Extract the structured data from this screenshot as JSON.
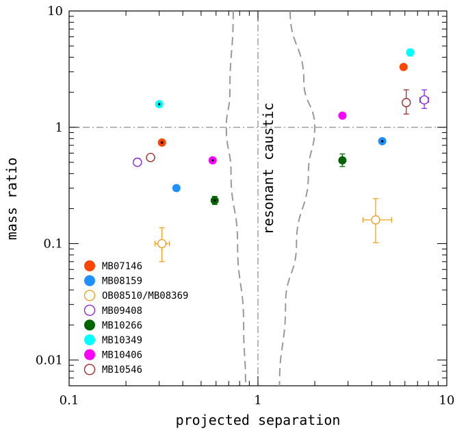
{
  "chart_data": {
    "type": "scatter",
    "xlabel": "projected separation",
    "ylabel": "mass ratio",
    "xscale": "log",
    "yscale": "log",
    "xlim": [
      0.1,
      10
    ],
    "ylim": [
      0.006,
      10
    ],
    "x_ticks": [
      {
        "value": 0.1,
        "label": "0.1"
      },
      {
        "value": 1,
        "label": "1"
      },
      {
        "value": 10,
        "label": "10"
      }
    ],
    "y_ticks": [
      {
        "value": 0.01,
        "label": "0.01"
      },
      {
        "value": 0.1,
        "label": "0.1"
      },
      {
        "value": 1,
        "label": "1"
      },
      {
        "value": 10,
        "label": "10"
      }
    ],
    "annotation": "resonant caustic",
    "reference_lines": {
      "vertical_x": 1,
      "horizontal_y": 1,
      "style": "dash-dot"
    },
    "caustic_boundary": {
      "style": "dashed",
      "left": [
        [
          0.74,
          10
        ],
        [
          0.71,
          2.0
        ],
        [
          0.68,
          1.0
        ],
        [
          0.72,
          0.4
        ],
        [
          0.78,
          0.1
        ],
        [
          0.84,
          0.02
        ],
        [
          0.86,
          0.006
        ]
      ],
      "right": [
        [
          1.48,
          10
        ],
        [
          1.75,
          2.5
        ],
        [
          2.0,
          1.0
        ],
        [
          1.85,
          0.4
        ],
        [
          1.6,
          0.1
        ],
        [
          1.4,
          0.03
        ],
        [
          1.3,
          0.006
        ]
      ]
    },
    "legend": {
      "placement": "lower-left"
    },
    "series": [
      {
        "name": "MB07146",
        "color": "#ff4500",
        "filled": true,
        "points": [
          {
            "x": 0.31,
            "y": 0.74,
            "xerr": [
              0.01,
              0.01
            ],
            "yerr": [
              0.04,
              0.04
            ],
            "dot": true
          },
          {
            "x": 5.9,
            "y": 3.3,
            "xerr": [
              0.15,
              0.15
            ],
            "yerr": [
              0.15,
              0.15
            ],
            "dot": false
          }
        ]
      },
      {
        "name": "MB08159",
        "color": "#1e90ff",
        "filled": true,
        "points": [
          {
            "x": 0.37,
            "y": 0.3,
            "xerr": [
              0.01,
              0.01
            ],
            "yerr": [
              0.01,
              0.01
            ],
            "dot": false
          },
          {
            "x": 4.55,
            "y": 0.76,
            "xerr": [
              0.15,
              0.15
            ],
            "yerr": [
              0.03,
              0.03
            ],
            "dot": true
          }
        ]
      },
      {
        "name": "OB08510/MB08369",
        "color": "#f0a020",
        "filled": false,
        "points": [
          {
            "x": 0.31,
            "y": 0.1,
            "xerr": [
              0.025,
              0.03
            ],
            "yerr": [
              0.03,
              0.037
            ],
            "dot": false
          },
          {
            "x": 4.2,
            "y": 0.16,
            "xerr": [
              0.6,
              0.9
            ],
            "yerr": [
              0.058,
              0.084
            ],
            "dot": false
          }
        ]
      },
      {
        "name": "MB09408",
        "color": "#8a2be2",
        "filled": false,
        "points": [
          {
            "x": 0.23,
            "y": 0.5,
            "xerr": [
              0.01,
              0.01
            ],
            "yerr": [
              0.03,
              0.04
            ],
            "dot": false
          },
          {
            "x": 7.6,
            "y": 1.72,
            "xerr": [
              0.4,
              0.4
            ],
            "yerr": [
              0.27,
              0.38
            ],
            "dot": false
          }
        ]
      },
      {
        "name": "MB10266",
        "color": "#006400",
        "filled": true,
        "points": [
          {
            "x": 0.59,
            "y": 0.235,
            "xerr": [
              0.01,
              0.01
            ],
            "yerr": [
              0.018,
              0.02
            ],
            "dot": true
          },
          {
            "x": 2.8,
            "y": 0.52,
            "xerr": [
              0.05,
              0.05
            ],
            "yerr": [
              0.06,
              0.07
            ],
            "dot": false
          }
        ]
      },
      {
        "name": "MB10349",
        "color": "#00ffff",
        "filled": true,
        "points": [
          {
            "x": 0.3,
            "y": 1.58,
            "xerr": [
              0.01,
              0.01
            ],
            "yerr": [
              0.04,
              0.04
            ],
            "dot": true
          },
          {
            "x": 6.4,
            "y": 4.4,
            "xerr": [
              0.15,
              0.15
            ],
            "yerr": [
              0.3,
              0.3
            ],
            "dot": false
          }
        ]
      },
      {
        "name": "MB10406",
        "color": "#ff00ff",
        "filled": true,
        "points": [
          {
            "x": 0.575,
            "y": 0.52,
            "xerr": [
              0.01,
              0.01
            ],
            "yerr": [
              0.01,
              0.01
            ],
            "dot": true
          },
          {
            "x": 2.8,
            "y": 1.26,
            "xerr": [
              0.05,
              0.05
            ],
            "yerr": [
              0.03,
              0.03
            ],
            "dot": false
          }
        ]
      },
      {
        "name": "MB10546",
        "color": "#a52a2a",
        "filled": false,
        "points": [
          {
            "x": 0.27,
            "y": 0.55,
            "xerr": [
              0.01,
              0.01
            ],
            "yerr": [
              0.03,
              0.03
            ],
            "dot": false
          },
          {
            "x": 6.1,
            "y": 1.63,
            "xerr": [
              0.2,
              0.2
            ],
            "yerr": [
              0.33,
              0.47
            ],
            "dot": false
          }
        ]
      }
    ]
  }
}
